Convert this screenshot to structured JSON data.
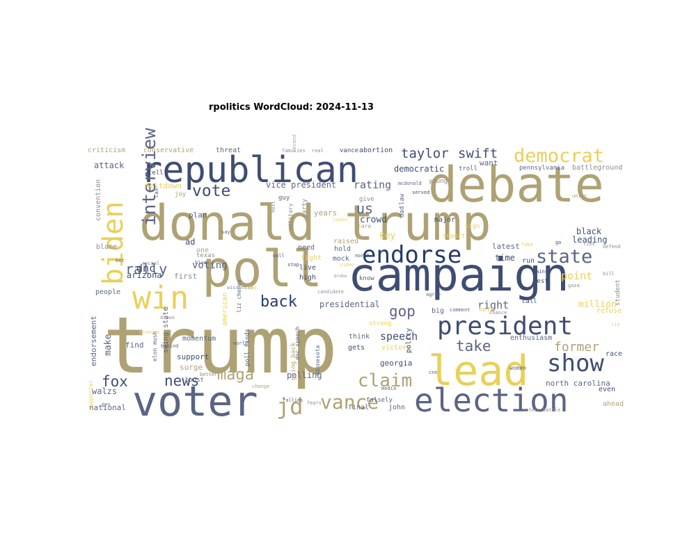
{
  "chart_data": {
    "type": "wordcloud",
    "title": "rpolitics WordCloud: 2024-11-13",
    "palette": {
      "khaki": "#aea274",
      "yellow": "#e8d05a",
      "navy": "#3f4d72",
      "darknavy": "#243a6b",
      "slate": "#5a6484",
      "grey": "#8a8b8c",
      "blue": "#1e3d7d"
    },
    "words": [
      {
        "text": "trump",
        "color": "khaki"
      },
      {
        "text": "donald trump",
        "color": "khaki"
      },
      {
        "text": "campaign",
        "color": "navy"
      },
      {
        "text": "debate",
        "color": "khaki"
      },
      {
        "text": "voter",
        "color": "slate"
      },
      {
        "text": "poll",
        "color": "khaki"
      },
      {
        "text": "election",
        "color": "slate"
      },
      {
        "text": "republican",
        "color": "navy"
      },
      {
        "text": "lead",
        "color": "yellow"
      },
      {
        "text": "win",
        "color": "yellow"
      },
      {
        "text": "biden",
        "color": "yellow"
      },
      {
        "text": "president",
        "color": "navy"
      },
      {
        "text": "endorse",
        "color": "darknavy"
      },
      {
        "text": "show",
        "color": "navy"
      },
      {
        "text": "democrat",
        "color": "yellow"
      },
      {
        "text": "state",
        "color": "slate"
      },
      {
        "text": "interview",
        "color": "slate"
      },
      {
        "text": "vote",
        "color": "navy"
      },
      {
        "text": "rally",
        "color": "slate"
      },
      {
        "text": "jd",
        "color": "khaki"
      },
      {
        "text": "vance",
        "color": "khaki"
      },
      {
        "text": "claim",
        "color": "khaki"
      },
      {
        "text": "news",
        "color": "navy"
      },
      {
        "text": "fox",
        "color": "navy"
      },
      {
        "text": "maga",
        "color": "khaki"
      },
      {
        "text": "gop",
        "color": "slate"
      },
      {
        "text": "back",
        "color": "darknavy"
      },
      {
        "text": "take",
        "color": "slate"
      },
      {
        "text": "former",
        "color": "khaki"
      },
      {
        "text": "taylor",
        "color": "navy"
      },
      {
        "text": "swift",
        "color": "navy"
      },
      {
        "text": "us",
        "color": "slate"
      },
      {
        "text": "rating",
        "color": "slate"
      },
      {
        "text": "speech",
        "color": "navy"
      },
      {
        "text": "point",
        "color": "yellow"
      },
      {
        "text": "right",
        "color": "slate"
      },
      {
        "text": "dnc",
        "color": "navy"
      },
      {
        "text": "voting",
        "color": "slate"
      },
      {
        "text": "crowd",
        "color": "navy"
      },
      {
        "text": "key",
        "color": "yellow"
      },
      {
        "text": "polling",
        "color": "slate"
      },
      {
        "text": "arizona",
        "color": "navy"
      },
      {
        "text": "leading",
        "color": "navy"
      },
      {
        "text": "black",
        "color": "navy"
      },
      {
        "text": "presidential",
        "color": "slate"
      },
      {
        "text": "vice president",
        "color": "slate"
      },
      {
        "text": "democratic",
        "color": "navy"
      },
      {
        "text": "make",
        "color": "slate"
      },
      {
        "text": "attack",
        "color": "slate"
      },
      {
        "text": "georgia",
        "color": "navy"
      },
      {
        "text": "north carolina",
        "color": "slate"
      },
      {
        "text": "million",
        "color": "yellow"
      },
      {
        "text": "surge",
        "color": "khaki"
      },
      {
        "text": "swing state",
        "color": "slate"
      },
      {
        "text": "support",
        "color": "navy"
      },
      {
        "text": "convention",
        "color": "grey"
      },
      {
        "text": "meltdown",
        "color": "yellow"
      },
      {
        "text": "plan",
        "color": "slate"
      },
      {
        "text": "one",
        "color": "khaki"
      },
      {
        "text": "ad",
        "color": "navy"
      },
      {
        "text": "years",
        "color": "khaki"
      },
      {
        "text": "latest",
        "color": "slate"
      },
      {
        "text": "time",
        "color": "navy"
      },
      {
        "text": "first",
        "color": "grey"
      },
      {
        "text": "national",
        "color": "slate"
      },
      {
        "text": "walzs",
        "color": "slate"
      },
      {
        "text": "find",
        "color": "slate"
      },
      {
        "text": "endorsement",
        "color": "slate"
      },
      {
        "text": "people",
        "color": "slate"
      },
      {
        "text": "blame",
        "color": "grey"
      },
      {
        "text": "criticism",
        "color": "khaki"
      },
      {
        "text": "conservative",
        "color": "khaki"
      },
      {
        "text": "threat",
        "color": "slate"
      },
      {
        "text": "vance",
        "color": "navy"
      },
      {
        "text": "abortion",
        "color": "navy"
      },
      {
        "text": "want",
        "color": "slate"
      },
      {
        "text": "battleground",
        "color": "grey"
      },
      {
        "text": "pennsylvania",
        "color": "slate"
      },
      {
        "text": "troll",
        "color": "slate"
      },
      {
        "text": "tell",
        "color": "navy"
      },
      {
        "text": "major",
        "color": "navy"
      },
      {
        "text": "need",
        "color": "slate"
      },
      {
        "text": "hold",
        "color": "slate"
      },
      {
        "text": "mock",
        "color": "slate"
      },
      {
        "text": "live",
        "color": "navy"
      },
      {
        "text": "high",
        "color": "navy"
      },
      {
        "text": "know",
        "color": "slate"
      },
      {
        "text": "fight",
        "color": "yellow"
      },
      {
        "text": "raised",
        "color": "khaki"
      },
      {
        "text": "run",
        "color": "navy"
      },
      {
        "text": "best",
        "color": "navy"
      },
      {
        "text": "call",
        "color": "navy"
      },
      {
        "text": "even",
        "color": "navy"
      },
      {
        "text": "race",
        "color": "navy"
      },
      {
        "text": "ahead",
        "color": "khaki"
      },
      {
        "text": "refuse",
        "color": "yellow"
      },
      {
        "text": "enthusiasm",
        "color": "slate"
      },
      {
        "text": "john",
        "color": "slate"
      },
      {
        "text": "final",
        "color": "slate"
      },
      {
        "text": "falsely",
        "color": "slate"
      },
      {
        "text": "gets",
        "color": "navy"
      },
      {
        "text": "think",
        "color": "slate"
      },
      {
        "text": "victory",
        "color": "yellow"
      },
      {
        "text": "going back",
        "color": "khaki"
      },
      {
        "text": "poll finds",
        "color": "slate"
      },
      {
        "text": "elon musk",
        "color": "slate"
      },
      {
        "text": "momentum",
        "color": "slate"
      },
      {
        "text": "boost",
        "color": "slate"
      },
      {
        "text": "american",
        "color": "yellow"
      },
      {
        "text": "liz cheney",
        "color": "slate"
      },
      {
        "text": "dnc speech",
        "color": "slate"
      },
      {
        "text": "minnesota",
        "color": "slate"
      },
      {
        "text": "policy",
        "color": "navy"
      },
      {
        "text": "big",
        "color": "slate"
      },
      {
        "text": "help",
        "color": "yellow"
      },
      {
        "text": "strong",
        "color": "yellow"
      },
      {
        "text": "young",
        "color": "grey"
      },
      {
        "text": "give",
        "color": "grey"
      },
      {
        "text": "sign",
        "color": "yellow"
      },
      {
        "text": "report",
        "color": "yellow"
      },
      {
        "text": "student",
        "color": "grey"
      },
      {
        "text": "women",
        "color": "slate"
      },
      {
        "text": "supporter",
        "color": "yellow"
      },
      {
        "text": "texas",
        "color": "grey"
      },
      {
        "text": "party",
        "color": "grey"
      },
      {
        "text": "dad",
        "color": "slate"
      },
      {
        "text": "law",
        "color": "slate"
      },
      {
        "text": "guy",
        "color": "slate"
      },
      {
        "text": "joy",
        "color": "khaki"
      },
      {
        "text": "tax",
        "color": "slate"
      },
      {
        "text": "care",
        "color": "khaki"
      },
      {
        "text": "military",
        "color": "grey"
      },
      {
        "text": "candidate",
        "color": "grey"
      },
      {
        "text": "wisconsin",
        "color": "grey"
      },
      {
        "text": "media",
        "color": "slate"
      },
      {
        "text": "rallies",
        "color": "slate"
      },
      {
        "text": "change",
        "color": "khaki"
      },
      {
        "text": "better",
        "color": "grey"
      },
      {
        "text": "world",
        "color": "slate"
      },
      {
        "text": "behind",
        "color": "slate"
      },
      {
        "text": "social",
        "color": "grey"
      },
      {
        "text": "stop",
        "color": "navy"
      },
      {
        "text": "video",
        "color": "yellow"
      },
      {
        "text": "comment",
        "color": "slate"
      },
      {
        "text": "chance",
        "color": "grey"
      },
      {
        "text": "agree",
        "color": "slate"
      },
      {
        "text": "voters",
        "color": "grey"
      },
      {
        "text": "battle",
        "color": "grey"
      },
      {
        "text": "fears",
        "color": "grey"
      },
      {
        "text": "gov",
        "color": "slate"
      },
      {
        "text": "draws",
        "color": "grey"
      },
      {
        "text": "economy",
        "color": "yellow"
      },
      {
        "text": "leader",
        "color": "yellow"
      },
      {
        "text": "host",
        "color": "grey"
      },
      {
        "text": "real",
        "color": "grey"
      },
      {
        "text": "families",
        "color": "grey"
      },
      {
        "text": "second",
        "color": "khaki"
      },
      {
        "text": "mcdonald",
        "color": "slate"
      },
      {
        "text": "served",
        "color": "navy"
      },
      {
        "text": "fake",
        "color": "yellow"
      },
      {
        "text": "defend",
        "color": "grey"
      },
      {
        "text": "union",
        "color": "khaki"
      },
      {
        "text": "gains",
        "color": "navy"
      },
      {
        "text": "broke",
        "color": "grey"
      },
      {
        "text": "wall",
        "color": "slate"
      },
      {
        "text": "north",
        "color": "navy"
      },
      {
        "text": "blue",
        "color": "slate"
      },
      {
        "text": "say",
        "color": "slate"
      },
      {
        "text": "day",
        "color": "yellow"
      },
      {
        "text": "bet",
        "color": "slate"
      },
      {
        "text": "cnn",
        "color": "slate"
      },
      {
        "text": "go",
        "color": "navy"
      },
      {
        "text": "ties",
        "color": "grey"
      },
      {
        "text": "gaza",
        "color": "grey"
      },
      {
        "text": "bill",
        "color": "grey"
      },
      {
        "text": "lie",
        "color": "yellow"
      },
      {
        "text": "end",
        "color": "grey"
      },
      {
        "text": "full",
        "color": "grey"
      }
    ]
  }
}
